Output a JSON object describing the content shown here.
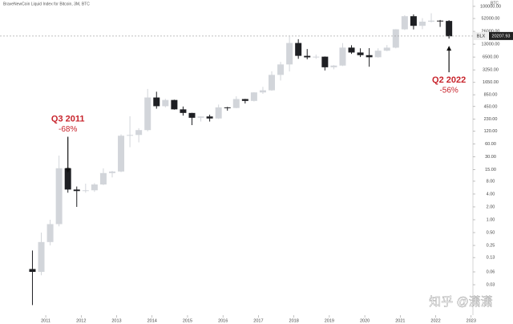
{
  "chart_data": {
    "type": "candlestick",
    "title": "BraveNewCoin Liquid Index for Bitcoin, 3M, BTC",
    "y_unit": "BTC",
    "log_scale": true,
    "up_color": "#d2d5da",
    "down_color": "#1e1f23",
    "annotation_color": "#c8242c",
    "x": [
      2010.625,
      2010.875,
      2011.125,
      2011.375,
      2011.625,
      2011.875,
      2012.125,
      2012.375,
      2012.625,
      2012.875,
      2013.125,
      2013.375,
      2013.625,
      2013.875,
      2014.125,
      2014.375,
      2014.625,
      2014.875,
      2015.125,
      2015.375,
      2015.625,
      2015.875,
      2016.125,
      2016.375,
      2016.625,
      2016.875,
      2017.125,
      2017.375,
      2017.625,
      2017.875,
      2018.125,
      2018.375,
      2018.625,
      2018.875,
      2019.125,
      2019.375,
      2019.625,
      2019.875,
      2020.125,
      2020.375,
      2020.625,
      2020.875,
      2021.125,
      2021.375,
      2021.625,
      2021.875,
      2022.125,
      2022.375
    ],
    "open": [
      0.07,
      0.06,
      0.3,
      0.79,
      16.1,
      5.1,
      4.7,
      4.9,
      6.7,
      12.4,
      13.5,
      93,
      97,
      126,
      732,
      458,
      640,
      386,
      318,
      245,
      263,
      236,
      430,
      416,
      673,
      609,
      963,
      1079,
      2480,
      4360,
      13860,
      6930,
      6390,
      6630,
      3740,
      4100,
      10800,
      8300,
      7190,
      6430,
      9140,
      10780,
      28990,
      58800,
      35000,
      43800,
      46300,
      45500
    ],
    "high": [
      0.19,
      0.5,
      1.0,
      31.9,
      17,
      6,
      7,
      7.2,
      16,
      13.9,
      100,
      266,
      140,
      1160,
      1000,
      680,
      650,
      450,
      320,
      265,
      290,
      500,
      440,
      780,
      680,
      975,
      1300,
      3000,
      5000,
      19700,
      17000,
      10000,
      7400,
      6700,
      4200,
      13800,
      12300,
      10400,
      10500,
      10400,
      12400,
      29300,
      61800,
      64800,
      52900,
      69000,
      48000,
      47500
    ],
    "low": [
      0.01,
      0.05,
      0.25,
      0.7,
      4.3,
      2,
      4.3,
      4.5,
      6.5,
      9.8,
      13,
      50,
      65,
      118,
      400,
      430,
      380,
      275,
      165,
      200,
      200,
      230,
      360,
      410,
      530,
      590,
      890,
      1050,
      1830,
      2980,
      5900,
      5750,
      5900,
      3150,
      3350,
      4000,
      7700,
      6500,
      3850,
      6300,
      8900,
      10400,
      28000,
      28800,
      29300,
      42000,
      33000,
      17600
    ],
    "close": [
      0.06,
      0.3,
      0.79,
      16.1,
      5.1,
      4.7,
      4.9,
      6.7,
      12.4,
      13.5,
      93,
      97,
      126,
      732,
      458,
      640,
      386,
      318,
      245,
      263,
      236,
      430,
      416,
      673,
      609,
      963,
      1079,
      2480,
      4360,
      13860,
      6930,
      6390,
      6630,
      3740,
      4100,
      10800,
      8300,
      7190,
      6430,
      9140,
      10780,
      28990,
      58800,
      35000,
      43800,
      46300,
      45500,
      19900
    ],
    "xlim": [
      2009.71,
      2023.05
    ],
    "xticks": [
      2011,
      2012,
      2013,
      2014,
      2015,
      2016,
      2017,
      2018,
      2019,
      2020,
      2021,
      2022,
      2023
    ],
    "ylim": [
      0.0058,
      141000
    ],
    "yticks": [
      {
        "value": 100000,
        "label": "100000.00"
      },
      {
        "value": 52000,
        "label": "52000.00"
      },
      {
        "value": 26000,
        "label": "26000.00"
      },
      {
        "value": 13000,
        "label": "13000.00"
      },
      {
        "value": 6500,
        "label": "6500.00"
      },
      {
        "value": 3250,
        "label": "3250.00"
      },
      {
        "value": 1650,
        "label": "1650.00"
      },
      {
        "value": 850,
        "label": "850.00"
      },
      {
        "value": 450,
        "label": "450.00"
      },
      {
        "value": 230,
        "label": "230.00"
      },
      {
        "value": 120,
        "label": "120.00"
      },
      {
        "value": 60,
        "label": "60.00"
      },
      {
        "value": 30,
        "label": "30.00"
      },
      {
        "value": 15,
        "label": "15.00"
      },
      {
        "value": 8,
        "label": "8.00"
      },
      {
        "value": 4,
        "label": "4.00"
      },
      {
        "value": 2,
        "label": "2.00"
      },
      {
        "value": 1,
        "label": "1.00"
      },
      {
        "value": 0.5,
        "label": "0.50"
      },
      {
        "value": 0.25,
        "label": "0.25"
      },
      {
        "value": 0.13,
        "label": "0.13"
      },
      {
        "value": 0.06,
        "label": "0.06"
      },
      {
        "value": 0.03,
        "label": "0.03"
      }
    ],
    "last_price": {
      "label": "BLX",
      "value": 20207.93
    },
    "annotations": [
      {
        "title": "Q3 2011",
        "text": "-68%",
        "x": 2011.625,
        "y": 17
      },
      {
        "title": "Q2 2022",
        "text": "-56%",
        "x": 2022.375,
        "y": 17600
      }
    ],
    "watermark": "知乎 @潇潇"
  }
}
